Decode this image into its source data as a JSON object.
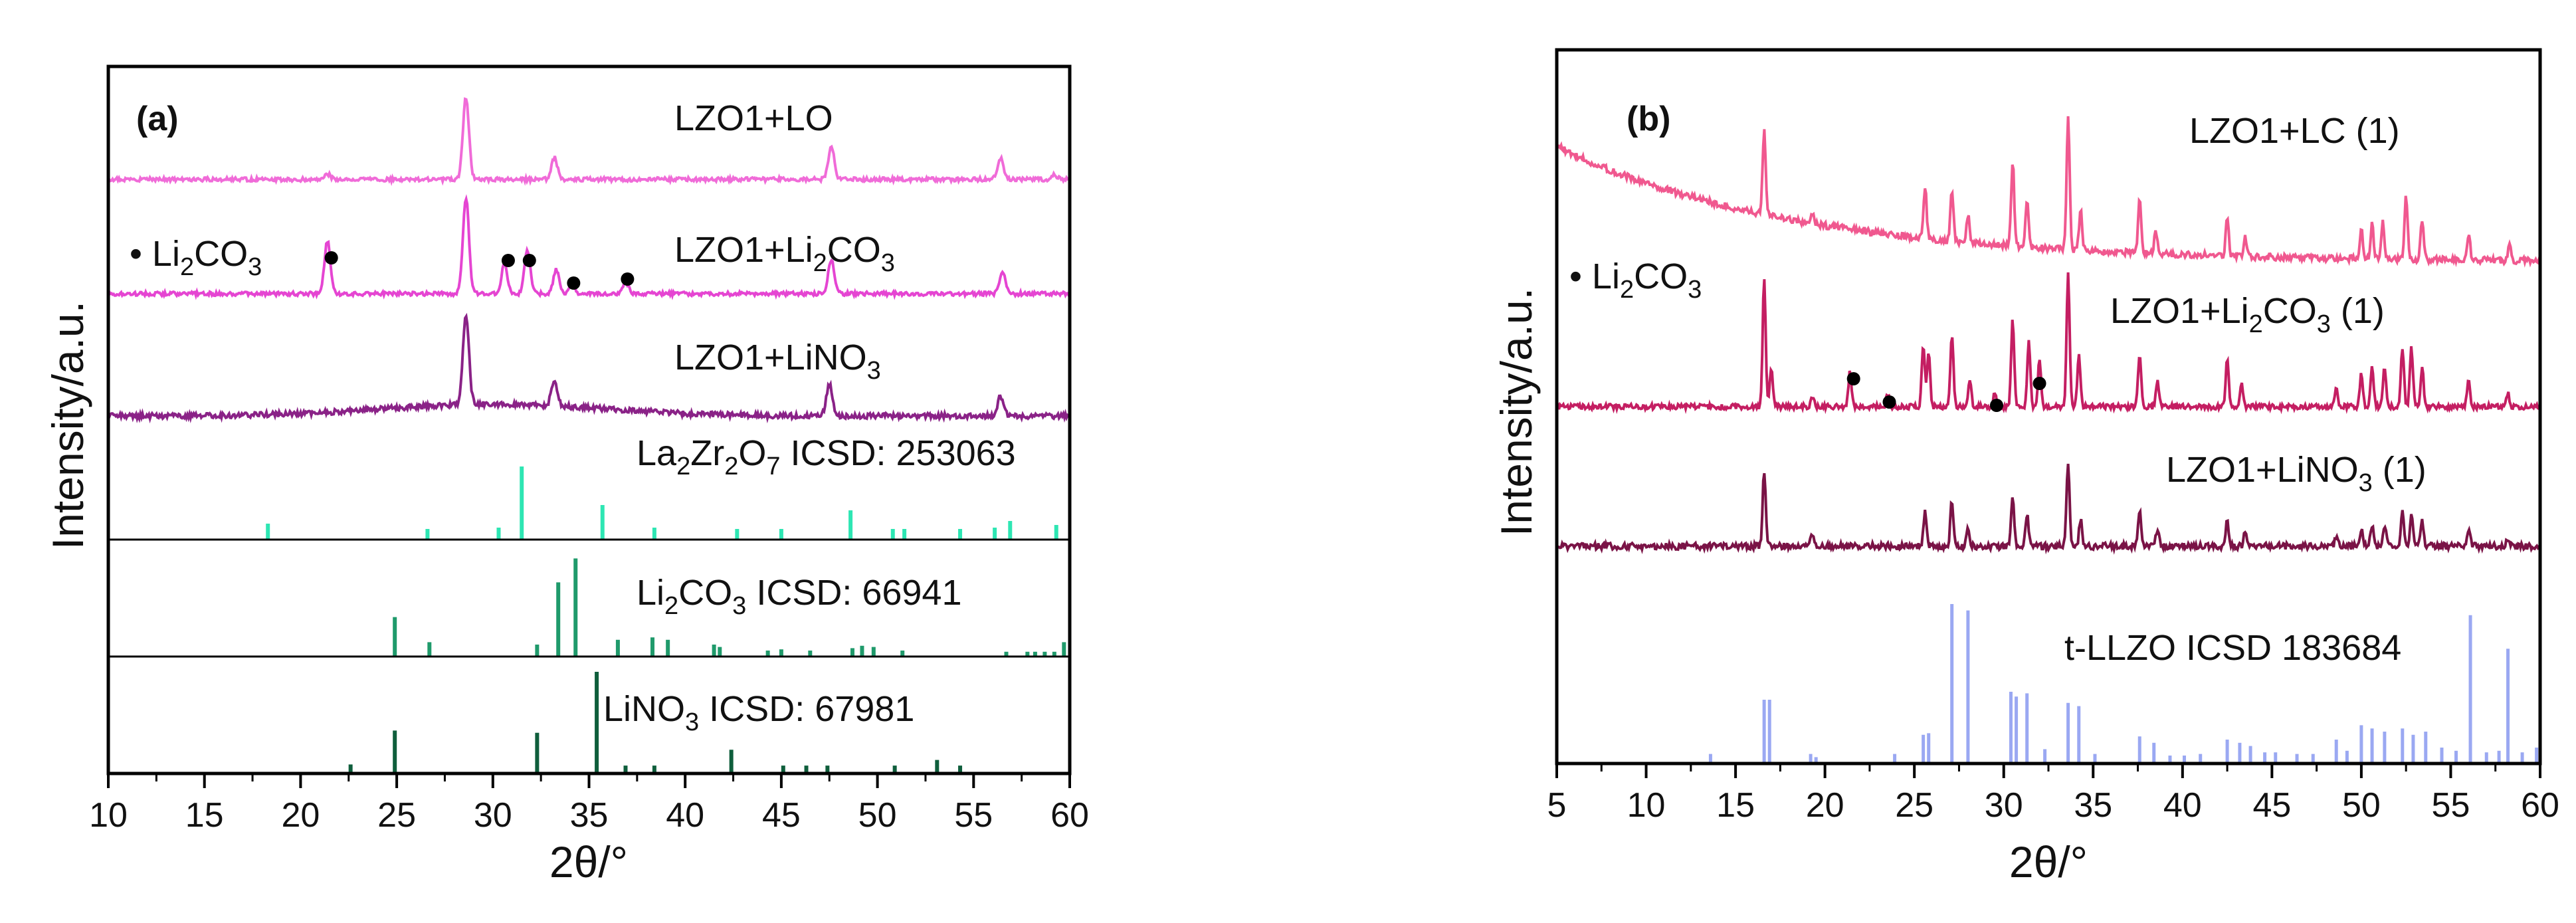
{
  "chart_data": [
    {
      "type": "line",
      "panel": "(a)",
      "xlabel": "2θ/°",
      "ylabel": "Intensity/a.u.",
      "xlim": [
        10,
        60
      ],
      "xticks": [
        "10",
        "15",
        "20",
        "25",
        "30",
        "35",
        "40",
        "45",
        "50",
        "55",
        "60"
      ],
      "legend_marker": "Li2CO3",
      "series": [
        {
          "name": "LZO1+LO",
          "color": "#f06bd8",
          "peaks": [
            [
              21.4,
              0.06
            ],
            [
              28.6,
              0.95
            ],
            [
              33.2,
              0.25
            ],
            [
              47.6,
              0.38
            ],
            [
              56.4,
              0.24
            ],
            [
              59.2,
              0.05
            ]
          ],
          "markers": []
        },
        {
          "name": "LZO1+Li2CO3",
          "color": "#e545d2",
          "peaks": [
            [
              21.4,
              0.55
            ],
            [
              28.6,
              1.0
            ],
            [
              30.6,
              0.3
            ],
            [
              31.8,
              0.45
            ],
            [
              33.3,
              0.25
            ],
            [
              34.1,
              0.1
            ],
            [
              36.9,
              0.12
            ],
            [
              47.6,
              0.35
            ],
            [
              56.5,
              0.22
            ]
          ],
          "markers": [
            21.6,
            30.8,
            31.9,
            34.2,
            37.0
          ]
        },
        {
          "name": "LZO1+LiNO3",
          "color": "#8a2287",
          "peaks": [
            [
              28.6,
              1.0
            ],
            [
              33.2,
              0.28
            ],
            [
              47.5,
              0.35
            ],
            [
              56.4,
              0.22
            ]
          ],
          "markers": []
        }
      ],
      "references": [
        {
          "name": "La2Zr2O7 ICSD: 253063",
          "color": "#2ee6b3",
          "sticks": [
            [
              18.3,
              0.12
            ],
            [
              26.6,
              0.08
            ],
            [
              30.3,
              0.09
            ],
            [
              31.5,
              0.55
            ],
            [
              35.7,
              0.26
            ],
            [
              38.4,
              0.09
            ],
            [
              42.7,
              0.08
            ],
            [
              45.0,
              0.08
            ],
            [
              48.6,
              0.22
            ],
            [
              50.8,
              0.08
            ],
            [
              51.4,
              0.08
            ],
            [
              54.3,
              0.08
            ],
            [
              56.1,
              0.09
            ],
            [
              56.9,
              0.14
            ],
            [
              59.3,
              0.11
            ]
          ]
        },
        {
          "name": "Li2CO3 ICSD: 66941",
          "color": "#1f9a6b",
          "sticks": [
            [
              24.9,
              0.33
            ],
            [
              26.7,
              0.12
            ],
            [
              32.3,
              0.1
            ],
            [
              33.4,
              0.62
            ],
            [
              34.3,
              0.82
            ],
            [
              36.5,
              0.14
            ],
            [
              38.3,
              0.16
            ],
            [
              39.1,
              0.14
            ],
            [
              41.5,
              0.1
            ],
            [
              41.8,
              0.08
            ],
            [
              44.3,
              0.05
            ],
            [
              45.0,
              0.06
            ],
            [
              46.5,
              0.05
            ],
            [
              48.7,
              0.07
            ],
            [
              49.2,
              0.09
            ],
            [
              49.8,
              0.08
            ],
            [
              51.3,
              0.05
            ],
            [
              56.7,
              0.04
            ],
            [
              57.8,
              0.04
            ],
            [
              58.2,
              0.04
            ],
            [
              58.7,
              0.04
            ],
            [
              59.2,
              0.04
            ],
            [
              59.7,
              0.12
            ]
          ]
        },
        {
          "name": "LiNO3 ICSD: 67981",
          "color": "#0f5e3c",
          "sticks": [
            [
              22.6,
              0.08
            ],
            [
              24.9,
              0.38
            ],
            [
              32.3,
              0.36
            ],
            [
              35.4,
              0.9
            ],
            [
              36.9,
              0.07
            ],
            [
              38.4,
              0.07
            ],
            [
              42.4,
              0.21
            ],
            [
              45.1,
              0.07
            ],
            [
              46.3,
              0.07
            ],
            [
              47.4,
              0.07
            ],
            [
              50.9,
              0.07
            ],
            [
              53.1,
              0.12
            ],
            [
              54.3,
              0.07
            ]
          ]
        }
      ]
    },
    {
      "type": "line",
      "panel": "(b)",
      "xlabel": "2θ/°",
      "ylabel": "Intensity/a.u.",
      "xlim": [
        5,
        60
      ],
      "xticks": [
        "5",
        "10",
        "15",
        "20",
        "25",
        "30",
        "35",
        "40",
        "45",
        "50",
        "55",
        "60"
      ],
      "legend_marker": "Li2CO3",
      "series": [
        {
          "name": "LZO1+LC (1)",
          "color": "#f0588f",
          "baseline": "sloped",
          "peaks": [
            [
              16.6,
              0.62
            ],
            [
              19.3,
              0.08
            ],
            [
              25.6,
              0.38
            ],
            [
              27.1,
              0.38
            ],
            [
              28.0,
              0.2
            ],
            [
              30.5,
              0.62
            ],
            [
              31.3,
              0.35
            ],
            [
              33.6,
              0.98
            ],
            [
              34.3,
              0.3
            ],
            [
              37.6,
              0.38
            ],
            [
              38.5,
              0.16
            ],
            [
              42.5,
              0.3
            ],
            [
              43.5,
              0.14
            ],
            [
              50.0,
              0.22
            ],
            [
              50.6,
              0.25
            ],
            [
              51.2,
              0.28
            ],
            [
              52.5,
              0.48
            ],
            [
              53.4,
              0.3
            ],
            [
              56.0,
              0.2
            ],
            [
              58.3,
              0.12
            ]
          ],
          "markers": []
        },
        {
          "name": "LZO1+Li2CO3 (1)",
          "color": "#c41e62",
          "peaks": [
            [
              16.6,
              0.95
            ],
            [
              17.0,
              0.3
            ],
            [
              19.3,
              0.08
            ],
            [
              21.4,
              0.28
            ],
            [
              23.5,
              0.1
            ],
            [
              25.5,
              0.45
            ],
            [
              25.8,
              0.4
            ],
            [
              27.1,
              0.55
            ],
            [
              28.1,
              0.2
            ],
            [
              29.5,
              0.1
            ],
            [
              30.5,
              0.65
            ],
            [
              31.4,
              0.5
            ],
            [
              32.0,
              0.35
            ],
            [
              33.6,
              1.0
            ],
            [
              34.2,
              0.4
            ],
            [
              37.6,
              0.4
            ],
            [
              38.6,
              0.2
            ],
            [
              42.5,
              0.35
            ],
            [
              43.3,
              0.18
            ],
            [
              48.6,
              0.14
            ],
            [
              50.0,
              0.25
            ],
            [
              50.6,
              0.3
            ],
            [
              51.3,
              0.3
            ],
            [
              52.3,
              0.45
            ],
            [
              52.8,
              0.45
            ],
            [
              53.4,
              0.3
            ],
            [
              56.0,
              0.2
            ],
            [
              58.2,
              0.1
            ]
          ],
          "markers": [
            21.6,
            23.6,
            29.6,
            32.0
          ]
        },
        {
          "name": "LZO1+LiNO3 (1)",
          "color": "#7a1346",
          "peaks": [
            [
              16.6,
              0.85
            ],
            [
              19.3,
              0.15
            ],
            [
              25.6,
              0.4
            ],
            [
              27.1,
              0.5
            ],
            [
              28.0,
              0.2
            ],
            [
              30.5,
              0.55
            ],
            [
              31.3,
              0.35
            ],
            [
              33.6,
              0.95
            ],
            [
              34.3,
              0.3
            ],
            [
              37.6,
              0.4
            ],
            [
              38.6,
              0.2
            ],
            [
              42.5,
              0.3
            ],
            [
              43.5,
              0.15
            ],
            [
              48.6,
              0.12
            ],
            [
              50.0,
              0.2
            ],
            [
              50.6,
              0.22
            ],
            [
              51.3,
              0.25
            ],
            [
              52.3,
              0.38
            ],
            [
              52.8,
              0.35
            ],
            [
              53.4,
              0.28
            ],
            [
              56.0,
              0.18
            ],
            [
              58.2,
              0.1
            ]
          ],
          "markers": []
        }
      ],
      "references": [
        {
          "name": "t-LLZO ICSD 183684",
          "color": "#9aa8f2",
          "sticks": [
            [
              13.6,
              0.06
            ],
            [
              16.6,
              0.4
            ],
            [
              16.9,
              0.4
            ],
            [
              19.2,
              0.06
            ],
            [
              19.5,
              0.04
            ],
            [
              23.9,
              0.06
            ],
            [
              25.5,
              0.18
            ],
            [
              25.8,
              0.19
            ],
            [
              27.1,
              1.0
            ],
            [
              28.0,
              0.96
            ],
            [
              30.4,
              0.45
            ],
            [
              30.7,
              0.42
            ],
            [
              31.3,
              0.44
            ],
            [
              32.3,
              0.09
            ],
            [
              33.6,
              0.38
            ],
            [
              34.2,
              0.36
            ],
            [
              35.1,
              0.06
            ],
            [
              37.6,
              0.17
            ],
            [
              38.4,
              0.13
            ],
            [
              39.3,
              0.05
            ],
            [
              40.1,
              0.05
            ],
            [
              41.0,
              0.06
            ],
            [
              42.5,
              0.15
            ],
            [
              43.2,
              0.13
            ],
            [
              43.8,
              0.11
            ],
            [
              44.6,
              0.07
            ],
            [
              45.2,
              0.07
            ],
            [
              46.4,
              0.06
            ],
            [
              47.3,
              0.06
            ],
            [
              48.6,
              0.15
            ],
            [
              49.2,
              0.08
            ],
            [
              50.0,
              0.24
            ],
            [
              50.6,
              0.22
            ],
            [
              51.3,
              0.2
            ],
            [
              52.3,
              0.22
            ],
            [
              52.9,
              0.18
            ],
            [
              53.6,
              0.2
            ],
            [
              54.5,
              0.1
            ],
            [
              55.3,
              0.08
            ],
            [
              56.1,
              0.93
            ],
            [
              57.0,
              0.07
            ],
            [
              57.7,
              0.08
            ],
            [
              58.2,
              0.72
            ],
            [
              59.0,
              0.07
            ],
            [
              59.8,
              0.1
            ]
          ]
        }
      ]
    }
  ],
  "labels": {
    "a_panel": "(a)",
    "a_s1": "LZO1+LO",
    "a_s2_pre": "LZO1+Li",
    "a_s2_sub1": "2",
    "a_s2_mid": "CO",
    "a_s2_sub2": "3",
    "a_s3_pre": "LZO1+LiNO",
    "a_s3_sub": "3",
    "a_legend_bullet": "•",
    "a_legend_pre": " Li",
    "a_legend_sub1": "2",
    "a_legend_mid": "CO",
    "a_legend_sub2": "3",
    "a_r1_pre": "La",
    "a_r1_s1": "2",
    "a_r1_m1": "Zr",
    "a_r1_s2": "2",
    "a_r1_m2": "O",
    "a_r1_s3": "7",
    "a_r1_post": " ICSD: 253063",
    "a_r2_pre": "Li",
    "a_r2_s1": "2",
    "a_r2_m": "CO",
    "a_r2_s2": "3",
    "a_r2_post": " ICSD: 66941",
    "a_r3_pre": "LiNO",
    "a_r3_s": "3",
    "a_r3_post": " ICSD: 67981",
    "b_panel": "(b)",
    "b_s1": "LZO1+LC (1)",
    "b_s2_pre": "LZO1+Li",
    "b_s2_sub1": "2",
    "b_s2_mid": "CO",
    "b_s2_sub2": "3",
    "b_s2_post": " (1)",
    "b_s3_pre": "LZO1+LiNO",
    "b_s3_sub": "3",
    "b_s3_post": " (1)",
    "b_legend_bullet": "•",
    "b_legend_pre": " Li",
    "b_legend_sub1": "2",
    "b_legend_mid": "CO",
    "b_legend_sub2": "3",
    "b_r1": "t-LLZO ICSD 183684",
    "xlabel": "2θ/°",
    "ylabel": "Intensity/a.u."
  }
}
